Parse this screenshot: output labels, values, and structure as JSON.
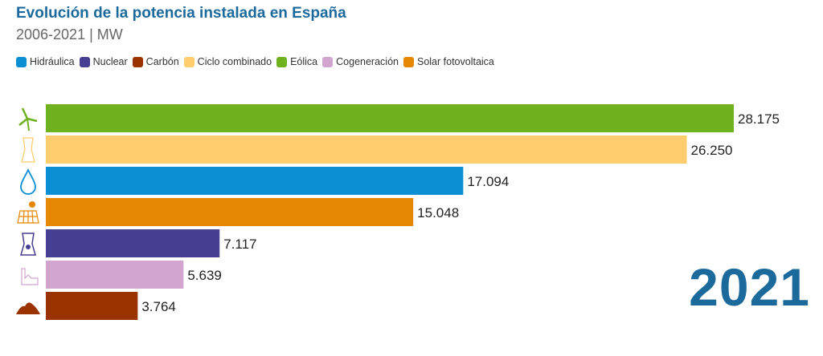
{
  "title": "Evolución de la potencia instalada en España",
  "subtitle": "2006-2021 | MW",
  "year": "2021",
  "chart_data": {
    "type": "bar",
    "orientation": "horizontal",
    "title": "Evolución de la potencia instalada en España",
    "subtitle": "2006-2021 | MW",
    "legend": [
      {
        "name": "Hidráulica",
        "color": "#0a8fd4"
      },
      {
        "name": "Nuclear",
        "color": "#463f92"
      },
      {
        "name": "Carbón",
        "color": "#9a3300"
      },
      {
        "name": "Ciclo combinado",
        "color": "#ffcc6e"
      },
      {
        "name": "Eólica",
        "color": "#6fb11f"
      },
      {
        "name": "Cogeneración",
        "color": "#d1a5d0"
      },
      {
        "name": "Solar fotovoltaica",
        "color": "#e58700"
      }
    ],
    "categories": [
      "Eólica",
      "Ciclo combinado",
      "Hidráulica",
      "Solar fotovoltaica",
      "Nuclear",
      "Cogeneración",
      "Carbón"
    ],
    "values": [
      28175,
      26250,
      17094,
      15048,
      7117,
      5639,
      3764
    ],
    "labels": [
      "28.175",
      "26.250",
      "17.094",
      "15.048",
      "7.117",
      "5.639",
      "3.764"
    ],
    "icons": [
      "wind-turbine-icon",
      "cooling-tower-icon",
      "water-drop-icon",
      "solar-panel-icon",
      "nuclear-plant-icon",
      "factory-icon",
      "coal-pile-icon"
    ],
    "xlim": [
      0,
      28175
    ],
    "legend_position": "top-left"
  }
}
